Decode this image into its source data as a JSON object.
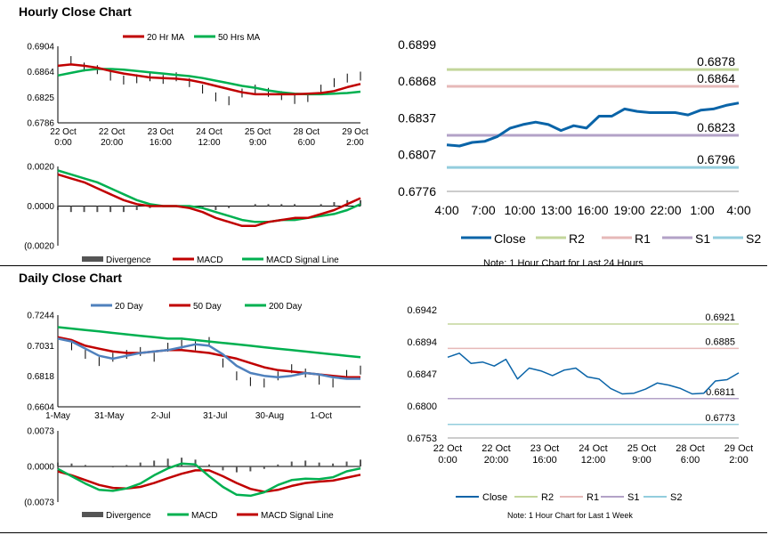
{
  "hourly_title": "Hourly Close Chart",
  "daily_title": "Daily Close Chart",
  "chart_data": [
    {
      "id": "hourly_price",
      "type": "line",
      "title": "",
      "ylim": [
        0.6786,
        0.6904
      ],
      "yticks": [
        "0.6904",
        "0.6864",
        "0.6825",
        "0.6786"
      ],
      "xticks": [
        [
          "22 Oct",
          "0:00"
        ],
        [
          "22 Oct",
          "20:00"
        ],
        [
          "23 Oct",
          "16:00"
        ],
        [
          "24 Oct",
          "12:00"
        ],
        [
          "25 Oct",
          "9:00"
        ],
        [
          "28 Oct",
          "6:00"
        ],
        [
          "29 Oct",
          "2:00"
        ]
      ],
      "legend": "top",
      "colors": {
        "close": "#000000",
        "ma20": "#c00000",
        "ma50": "#00b050"
      },
      "series": [
        {
          "name": "20 Hr MA",
          "key": "ma20",
          "values": [
            0.6874,
            0.6876,
            0.6874,
            0.6871,
            0.6866,
            0.6862,
            0.6859,
            0.6856,
            0.6855,
            0.6854,
            0.6852,
            0.6848,
            0.6843,
            0.6838,
            0.6833,
            0.683,
            0.683,
            0.683,
            0.683,
            0.6831,
            0.6832,
            0.6835,
            0.6841,
            0.6846
          ]
        },
        {
          "name": "50 Hrs MA",
          "key": "ma50",
          "values": [
            0.6859,
            0.6863,
            0.6867,
            0.6869,
            0.6869,
            0.6868,
            0.6866,
            0.6864,
            0.6862,
            0.686,
            0.6858,
            0.6855,
            0.6851,
            0.6847,
            0.6843,
            0.684,
            0.6836,
            0.6833,
            0.6831,
            0.683,
            0.683,
            0.6831,
            0.6832,
            0.6834
          ]
        },
        {
          "name": "",
          "key": "close",
          "values": [
            0.6879,
            0.6882,
            0.6872,
            0.6868,
            0.6858,
            0.6852,
            0.6854,
            0.6857,
            0.6853,
            0.6857,
            0.6848,
            0.6838,
            0.6826,
            0.682,
            0.6832,
            0.6838,
            0.6833,
            0.6828,
            0.6822,
            0.6825,
            0.6838,
            0.6848,
            0.6855,
            0.6858
          ]
        }
      ]
    },
    {
      "id": "hourly_macd",
      "type": "line",
      "ylim": [
        -0.002,
        0.002
      ],
      "yticks": [
        "0.0020",
        "0.0000",
        "(0.0020"
      ],
      "colors": {
        "divergence": "#555555",
        "macd": "#c00000",
        "signal": "#00b050"
      },
      "series": [
        {
          "name": "Divergence",
          "key": "divergence",
          "values": [
            -0.0002,
            -0.0003,
            -0.0003,
            -0.0003,
            -0.0003,
            -0.0003,
            -0.0002,
            -0.0001,
            0.0,
            0.0,
            -0.0001,
            -0.0001,
            -0.0002,
            -0.0001,
            0.0,
            0.0001,
            0.0001,
            0.0001,
            0.0001,
            0.0,
            0.0001,
            0.0002,
            0.0003,
            0.0003
          ]
        },
        {
          "name": "MACD",
          "key": "macd",
          "values": [
            0.0016,
            0.0014,
            0.0012,
            0.0009,
            0.0006,
            0.0003,
            0.0001,
            0.0,
            0.0,
            0.0,
            -0.0001,
            -0.0003,
            -0.0006,
            -0.0008,
            -0.001,
            -0.001,
            -0.0008,
            -0.0007,
            -0.0006,
            -0.0006,
            -0.0004,
            -0.0002,
            0.0001,
            0.0004
          ]
        },
        {
          "name": "MACD Signal Line",
          "key": "signal",
          "values": [
            0.0018,
            0.0016,
            0.0014,
            0.0012,
            0.0009,
            0.0006,
            0.0003,
            0.0001,
            0.0,
            0.0,
            0.0,
            -0.0001,
            -0.0003,
            -0.0005,
            -0.0007,
            -0.0008,
            -0.0008,
            -0.0007,
            -0.0007,
            -0.0006,
            -0.0005,
            -0.0004,
            -0.0002,
            0.0001
          ]
        }
      ]
    },
    {
      "id": "hourly_levels",
      "type": "line",
      "ylim": [
        0.6776,
        0.6899
      ],
      "yticks": [
        "0.6899",
        "0.6868",
        "0.6837",
        "0.6807",
        "0.6776"
      ],
      "xticks": [
        "4:00",
        "7:00",
        "10:00",
        "13:00",
        "16:00",
        "19:00",
        "22:00",
        "1:00",
        "4:00"
      ],
      "levels": [
        {
          "name": "R2",
          "value": 0.6878,
          "label": "0.6878"
        },
        {
          "name": "R1",
          "value": 0.6864,
          "label": "0.6864"
        },
        {
          "name": "S1",
          "value": 0.6823,
          "label": "0.6823"
        },
        {
          "name": "S2",
          "value": 0.6796,
          "label": "0.6796"
        }
      ],
      "colors": {
        "close": "#0a64a8",
        "R2": "#c3d69b",
        "R1": "#e6b9b8",
        "S1": "#b3a2c7",
        "S2": "#93cddd"
      },
      "series": [
        {
          "name": "Close",
          "values": [
            0.6815,
            0.6814,
            0.6817,
            0.6818,
            0.6822,
            0.6829,
            0.6832,
            0.6834,
            0.6832,
            0.6827,
            0.6831,
            0.6829,
            0.6839,
            0.6839,
            0.6845,
            0.6843,
            0.6842,
            0.6842,
            0.6842,
            0.684,
            0.6844,
            0.6845,
            0.6848,
            0.685
          ]
        }
      ],
      "legend_labels": [
        "Close",
        "R2",
        "R1",
        "S1",
        "S2"
      ],
      "note": "Note: 1 Hour Chart for Last 24 Hours"
    },
    {
      "id": "daily_price",
      "type": "line",
      "ylim": [
        0.6604,
        0.7244
      ],
      "yticks": [
        "0.7244",
        "0.7031",
        "0.6818",
        "0.6604"
      ],
      "xticks": [
        "1-May",
        "31-May",
        "2-Jul",
        "31-Jul",
        "30-Aug",
        "1-Oct"
      ],
      "colors": {
        "close": "#000000",
        "d20": "#4f81bd",
        "d50": "#c00000",
        "d200": "#00b050"
      },
      "series": [
        {
          "name": "20 Day",
          "key": "d20",
          "values": [
            0.708,
            0.706,
            0.701,
            0.696,
            0.694,
            0.696,
            0.698,
            0.699,
            0.7,
            0.702,
            0.704,
            0.703,
            0.697,
            0.689,
            0.684,
            0.682,
            0.681,
            0.682,
            0.684,
            0.683,
            0.681,
            0.68,
            0.68
          ]
        },
        {
          "name": "50 Day",
          "key": "d50",
          "values": [
            0.709,
            0.707,
            0.703,
            0.701,
            0.699,
            0.698,
            0.698,
            0.699,
            0.7,
            0.7,
            0.699,
            0.698,
            0.696,
            0.694,
            0.691,
            0.688,
            0.686,
            0.685,
            0.684,
            0.683,
            0.682,
            0.681,
            0.681
          ]
        },
        {
          "name": "200 Day",
          "key": "d200",
          "values": [
            0.716,
            0.715,
            0.714,
            0.713,
            0.712,
            0.711,
            0.71,
            0.709,
            0.708,
            0.708,
            0.707,
            0.706,
            0.705,
            0.704,
            0.703,
            0.702,
            0.701,
            0.7,
            0.699,
            0.698,
            0.697,
            0.696,
            0.695
          ]
        },
        {
          "name": "",
          "key": "close",
          "values": [
            0.707,
            0.703,
            0.697,
            0.692,
            0.695,
            0.697,
            0.699,
            0.695,
            0.702,
            0.704,
            0.703,
            0.706,
            0.691,
            0.682,
            0.678,
            0.677,
            0.682,
            0.687,
            0.684,
            0.679,
            0.677,
            0.683,
            0.686
          ]
        }
      ]
    },
    {
      "id": "daily_macd",
      "type": "line",
      "ylim": [
        -0.0073,
        0.0073
      ],
      "yticks": [
        "0.0073",
        "0.0000",
        "(0.0073"
      ],
      "colors": {
        "divergence": "#555555",
        "macd": "#00b050",
        "signal": "#c00000"
      },
      "series": [
        {
          "name": "Divergence",
          "key": "divergence",
          "values": [
            0.0008,
            0.0006,
            0.0003,
            0.0,
            -0.0002,
            0.0003,
            0.0008,
            0.0012,
            0.0016,
            0.0018,
            0.0014,
            0.0004,
            -0.0008,
            -0.0012,
            -0.001,
            -0.0005,
            0.0004,
            0.001,
            0.0012,
            0.0008,
            0.0006,
            0.001,
            0.0014
          ]
        },
        {
          "name": "MACD",
          "key": "macd",
          "values": [
            -0.0005,
            -0.002,
            -0.0035,
            -0.0048,
            -0.005,
            -0.0045,
            -0.0035,
            -0.0018,
            -0.0004,
            0.0006,
            0.0004,
            -0.002,
            -0.0042,
            -0.0058,
            -0.006,
            -0.0053,
            -0.0038,
            -0.0028,
            -0.0025,
            -0.0026,
            -0.0022,
            -0.001,
            -0.0004
          ]
        },
        {
          "name": "MACD Signal Line",
          "key": "signal",
          "values": [
            -0.001,
            -0.0018,
            -0.0028,
            -0.0038,
            -0.0044,
            -0.0045,
            -0.0042,
            -0.0034,
            -0.0024,
            -0.0015,
            -0.0008,
            -0.0008,
            -0.002,
            -0.0034,
            -0.0046,
            -0.0052,
            -0.0048,
            -0.004,
            -0.0034,
            -0.0031,
            -0.0029,
            -0.0023,
            -0.0017
          ]
        }
      ]
    },
    {
      "id": "daily_levels",
      "type": "line",
      "ylim": [
        0.6753,
        0.6942
      ],
      "yticks": [
        "0.6942",
        "0.6894",
        "0.6847",
        "0.6800",
        "0.6753"
      ],
      "xticks": [
        [
          "22 Oct",
          "0:00"
        ],
        [
          "22 Oct",
          "20:00"
        ],
        [
          "23 Oct",
          "16:00"
        ],
        [
          "24 Oct",
          "12:00"
        ],
        [
          "25 Oct",
          "9:00"
        ],
        [
          "28 Oct",
          "6:00"
        ],
        [
          "29 Oct",
          "2:00"
        ]
      ],
      "levels": [
        {
          "name": "R2",
          "value": 0.6921,
          "label": "0.6921"
        },
        {
          "name": "R1",
          "value": 0.6885,
          "label": "0.6885"
        },
        {
          "name": "S1",
          "value": 0.6811,
          "label": "0.6811"
        },
        {
          "name": "S2",
          "value": 0.6773,
          "label": "0.6773"
        }
      ],
      "colors": {
        "close": "#0a64a8",
        "R2": "#c3d69b",
        "R1": "#e6b9b8",
        "S1": "#b3a2c7",
        "S2": "#93cddd"
      },
      "series": [
        {
          "name": "Close",
          "values": [
            0.6872,
            0.6878,
            0.6863,
            0.6865,
            0.6859,
            0.6869,
            0.684,
            0.6856,
            0.6852,
            0.6845,
            0.6853,
            0.6856,
            0.6843,
            0.684,
            0.6826,
            0.6818,
            0.6819,
            0.6825,
            0.6834,
            0.6831,
            0.6826,
            0.6818,
            0.6819,
            0.6837,
            0.6839,
            0.6849
          ]
        }
      ],
      "legend_labels": [
        "Close",
        "R2",
        "R1",
        "S1",
        "S2"
      ],
      "note": "Note: 1 Hour Chart for Last 1 Week"
    }
  ]
}
